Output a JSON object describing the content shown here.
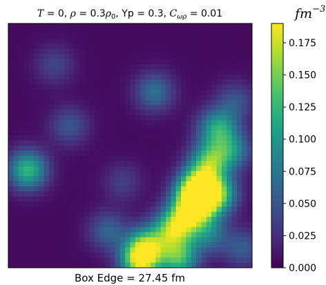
{
  "chart_data": {
    "type": "heatmap",
    "title": {
      "T_part": "T",
      "T_value": " = 0, ",
      "rho_part": "ρ",
      "rho_value": " = 0.3",
      "rho0_part": "ρ",
      "rho0_sub": "0",
      "yp_part": ", Yp = 0.3, ",
      "c_part": "C",
      "c_sub": "ωρ",
      "c_value": " = 0.01"
    },
    "xlabel": "Box Edge = 27.45 fm",
    "ylabel": "",
    "colorbar": {
      "label_base": "fm",
      "label_exp": "−3",
      "range": [
        0.0,
        0.19
      ],
      "ticks": [
        0.0,
        0.025,
        0.05,
        0.075,
        0.1,
        0.125,
        0.15,
        0.175
      ],
      "tick_labels": [
        "0.000",
        "0.025",
        "0.050",
        "0.075",
        "0.100",
        "0.125",
        "0.150",
        "0.175"
      ],
      "colormap": "viridis"
    },
    "grid": false,
    "legend": "none",
    "axis_ticks": false,
    "box_edge_fm": 27.45,
    "description_note": "Density heatmap; values are local densities in fm^-3 on a square box",
    "hotspots": [
      {
        "x": 0.08,
        "y": 0.6,
        "value": 0.125
      },
      {
        "x": 0.57,
        "y": 0.91,
        "value": 0.12
      },
      {
        "x": 0.41,
        "y": 0.85,
        "value": 0.06
      },
      {
        "x": 0.6,
        "y": 0.28,
        "value": 0.07
      },
      {
        "x": 0.86,
        "y": 0.43,
        "value": 0.11
      },
      {
        "x": 0.83,
        "y": 0.56,
        "value": 0.12
      },
      {
        "x": 0.79,
        "y": 0.65,
        "value": 0.115
      },
      {
        "x": 0.76,
        "y": 0.7,
        "value": 0.12
      },
      {
        "x": 0.78,
        "y": 0.74,
        "value": 0.14
      },
      {
        "x": 0.86,
        "y": 0.7,
        "value": 0.125
      },
      {
        "x": 0.72,
        "y": 0.8,
        "value": 0.11
      },
      {
        "x": 0.67,
        "y": 0.85,
        "value": 0.115
      },
      {
        "x": 0.54,
        "y": 0.97,
        "value": 0.165
      },
      {
        "x": 0.7,
        "y": 0.96,
        "value": 0.125
      },
      {
        "x": 0.82,
        "y": 0.86,
        "value": 0.075
      },
      {
        "x": 0.92,
        "y": 0.52,
        "value": 0.08
      },
      {
        "x": 0.25,
        "y": 0.42,
        "value": 0.05
      },
      {
        "x": 0.93,
        "y": 0.32,
        "value": 0.05
      },
      {
        "x": 0.19,
        "y": 0.17,
        "value": 0.04
      },
      {
        "x": 0.47,
        "y": 0.65,
        "value": 0.035
      },
      {
        "x": 0.96,
        "y": 0.92,
        "value": 0.055
      }
    ]
  }
}
